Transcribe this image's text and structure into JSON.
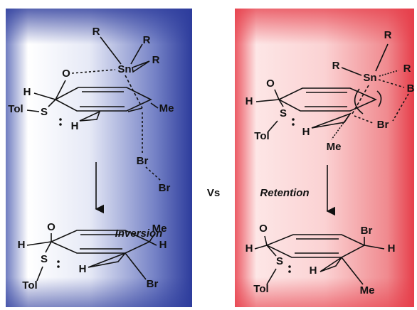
{
  "panels": [
    {
      "reactant": [
        "R",
        "R",
        "R",
        "Sn",
        "O",
        "H",
        "Tol",
        "S",
        "Me",
        "H",
        "Br",
        "Br"
      ],
      "arrow_label": "Inversion",
      "product": [
        "O",
        "H",
        "Me",
        "H",
        "S",
        "Tol",
        "H",
        "Br"
      ]
    },
    {
      "reactant": [
        "R",
        "R",
        "R",
        "Sn",
        "O",
        "H",
        "B",
        "Br",
        "S",
        "Tol",
        "H",
        "Me"
      ],
      "arrow_label": "Retention",
      "product": [
        "O",
        "Br",
        "H",
        "H",
        "S",
        "Tol",
        "H",
        "Me"
      ]
    }
  ],
  "separator": "Vs"
}
